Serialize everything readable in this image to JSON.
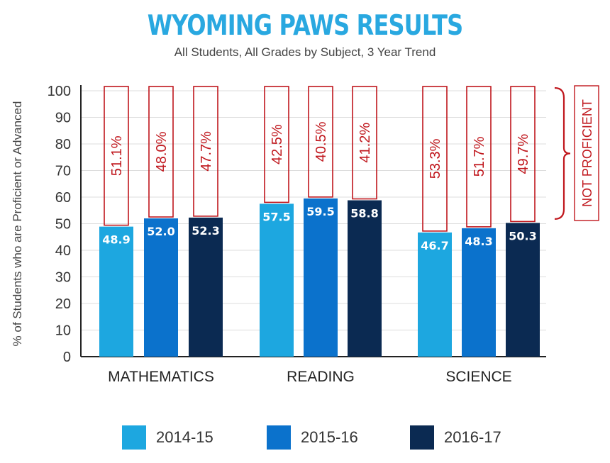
{
  "chart_data": {
    "type": "bar",
    "title": "WYOMING PAWS RESULTS",
    "subtitle": "All Students, All Grades by Subject, 3 Year Trend",
    "ylabel": "% of Students who are Proficient or Advanced",
    "ylim": [
      0,
      100
    ],
    "yticks": [
      0,
      10,
      20,
      30,
      40,
      50,
      60,
      70,
      80,
      90,
      100
    ],
    "categories": [
      "MATHEMATICS",
      "READING",
      "SCIENCE"
    ],
    "series": [
      {
        "name": "2014-15",
        "color": "#1da7e0",
        "values": [
          48.9,
          57.5,
          46.7
        ],
        "labels": [
          "48.9",
          "57.5",
          "46.7"
        ],
        "not_proficient": [
          "51.1%",
          "42.5%",
          "53.3%"
        ]
      },
      {
        "name": "2015-16",
        "color": "#0b72cc",
        "values": [
          52.0,
          59.5,
          48.3
        ],
        "labels": [
          "52.0",
          "59.5",
          "48.3"
        ],
        "not_proficient": [
          "48.0%",
          "40.5%",
          "51.7%"
        ]
      },
      {
        "name": "2016-17",
        "color": "#0b2a52",
        "values": [
          52.3,
          58.8,
          50.3
        ],
        "labels": [
          "52.3",
          "58.8",
          "50.3"
        ],
        "not_proficient": [
          "47.7%",
          "41.2%",
          "49.7%"
        ]
      }
    ],
    "annotation": "NOT PROFICIENT",
    "annotation_color": "#c0171d",
    "grid": true,
    "legend_position": "bottom"
  }
}
